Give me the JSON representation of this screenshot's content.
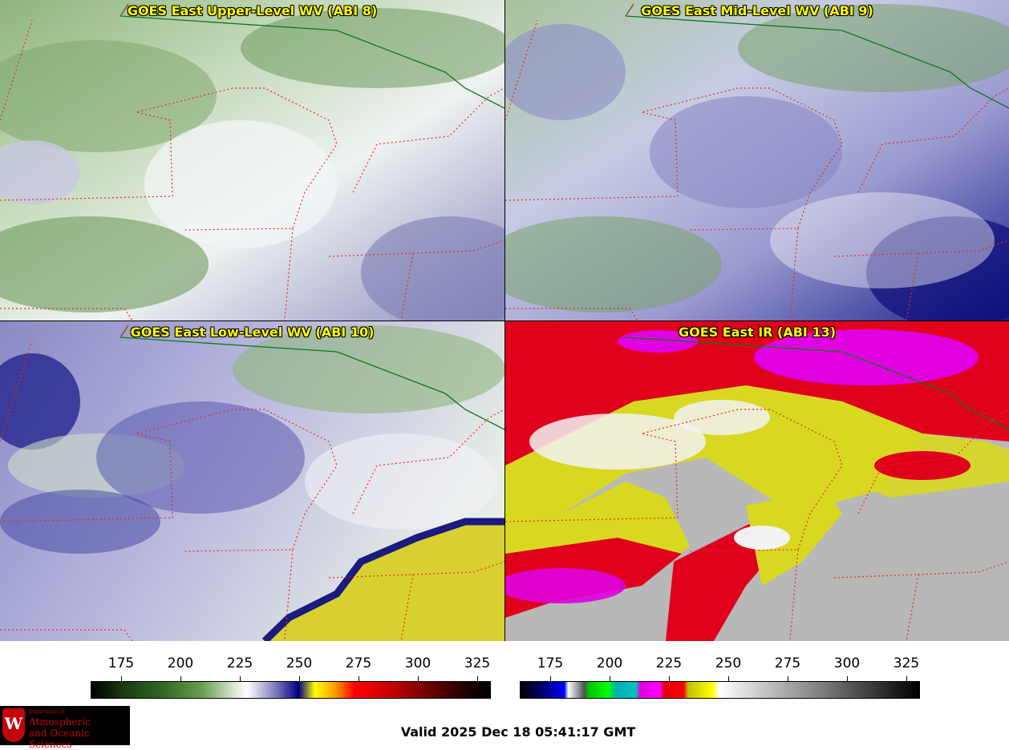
{
  "panels": [
    {
      "title": "GOES East Upper-Level WV (ABI 8)",
      "palette": "upper"
    },
    {
      "title": "GOES East Mid-Level WV (ABI 9)",
      "palette": "mid"
    },
    {
      "title": "GOES East Low-Level WV (ABI 10)",
      "palette": "low"
    },
    {
      "title": "GOES East IR (ABI 13)",
      "palette": "ir"
    }
  ],
  "colorbars": [
    {
      "name": "wv-colorbar",
      "ticks": [
        "175",
        "200",
        "225",
        "250",
        "275",
        "300",
        "325"
      ]
    },
    {
      "name": "ir-colorbar",
      "ticks": [
        "175",
        "200",
        "225",
        "250",
        "275",
        "300",
        "325"
      ]
    }
  ],
  "logo": {
    "small": "Department of",
    "line1": "Atmospheric",
    "line2": "and Oceanic Sciences"
  },
  "valid_time": "Valid 2025 Dec 18 05:41:17 GMT"
}
